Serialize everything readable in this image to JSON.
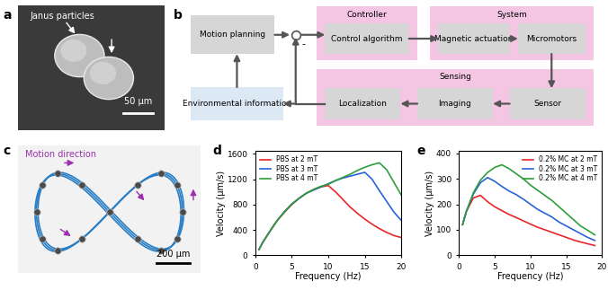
{
  "panels": {
    "a": {
      "label": "a",
      "annotation": "Janus particles",
      "scale_bar": "50 µm"
    },
    "b": {
      "label": "b",
      "motion_planning": "Motion planning",
      "controller": {
        "title": "Controller",
        "boxes": [
          "Control algorithm"
        ]
      },
      "system": {
        "title": "System",
        "boxes": [
          "Magnetic actuation",
          "Micromotors"
        ]
      },
      "sensing": {
        "title": "Sensing",
        "boxes": [
          "Localization",
          "Imaging",
          "Sensor"
        ]
      },
      "environment": "Environmental information",
      "feedback_sign": "-"
    },
    "c": {
      "label": "c",
      "annotation": "Motion direction",
      "scale_bar": "200 µm"
    }
  },
  "chart_data": [
    {
      "panel": "d",
      "type": "line",
      "x_label": "Frequency (Hz)",
      "y_label": "Velocity (µm/s)",
      "x": [
        0.5,
        1,
        2,
        3,
        4,
        5,
        6,
        7,
        8,
        9,
        10,
        11,
        12,
        13,
        14,
        15,
        16,
        17,
        18,
        19,
        20
      ],
      "series": [
        {
          "name": "PBS at 2 mT",
          "color": "#e8262a",
          "values": [
            90,
            200,
            380,
            550,
            680,
            800,
            900,
            980,
            1040,
            1080,
            1100,
            1000,
            880,
            760,
            660,
            570,
            490,
            420,
            360,
            310,
            280
          ]
        },
        {
          "name": "PBS at 3 mT",
          "color": "#2a62d8",
          "values": [
            90,
            200,
            380,
            550,
            690,
            810,
            900,
            980,
            1030,
            1080,
            1130,
            1180,
            1220,
            1250,
            1280,
            1310,
            1200,
            1020,
            850,
            680,
            550
          ]
        },
        {
          "name": "PBS at 4 mT",
          "color": "#2e9e3a",
          "values": [
            90,
            200,
            380,
            550,
            690,
            810,
            900,
            980,
            1040,
            1090,
            1120,
            1180,
            1230,
            1280,
            1340,
            1390,
            1430,
            1460,
            1350,
            1150,
            950
          ]
        }
      ],
      "xlim": [
        0,
        20
      ],
      "xticks": [
        0,
        5,
        10,
        15,
        20
      ],
      "ylim": [
        0,
        1650
      ],
      "yticks": [
        0,
        400,
        800,
        1200,
        1600
      ],
      "legend": "upper left"
    },
    {
      "panel": "e",
      "type": "line",
      "x_label": "Frequency (Hz)",
      "y_label": "Velocity (µm/s)",
      "x": [
        0.5,
        1,
        2,
        3,
        4,
        5,
        6,
        7,
        8,
        9,
        10,
        11,
        12,
        13,
        14,
        15,
        16,
        17,
        18,
        19
      ],
      "series": [
        {
          "name": "0.2% MC at 2 mT",
          "color": "#e8262a",
          "values": [
            120,
            170,
            225,
            235,
            210,
            190,
            175,
            160,
            148,
            135,
            122,
            110,
            100,
            90,
            80,
            70,
            60,
            52,
            45,
            38
          ]
        },
        {
          "name": "0.2% MC at 3 mT",
          "color": "#2a62d8",
          "values": [
            120,
            170,
            240,
            285,
            305,
            290,
            270,
            252,
            238,
            220,
            200,
            180,
            165,
            150,
            130,
            115,
            100,
            85,
            70,
            58
          ]
        },
        {
          "name": "0.2% MC at 4 mT",
          "color": "#2e9e3a",
          "values": [
            120,
            170,
            245,
            295,
            325,
            345,
            355,
            340,
            320,
            300,
            275,
            255,
            235,
            215,
            190,
            165,
            140,
            115,
            98,
            80
          ]
        }
      ],
      "xlim": [
        0,
        20
      ],
      "xticks": [
        0,
        5,
        10,
        15,
        20
      ],
      "ylim": [
        0,
        410
      ],
      "yticks": [
        0,
        100,
        200,
        300,
        400
      ],
      "legend": "upper right"
    }
  ]
}
